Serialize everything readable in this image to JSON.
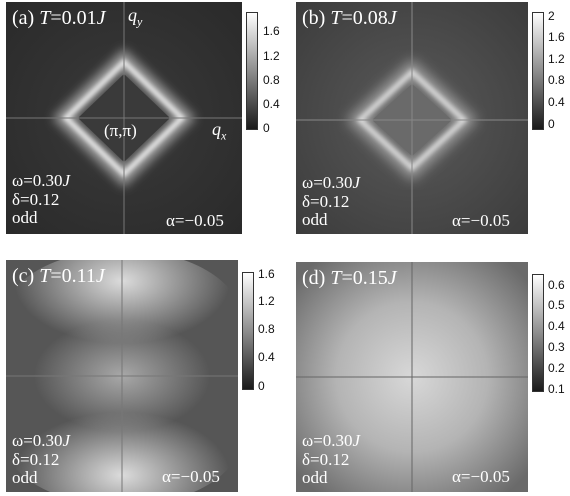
{
  "panels": [
    {
      "id": "a",
      "title_prefix": "(a) ",
      "title_var": "T",
      "title_value": "=0.01",
      "title_unit": "J",
      "omega": "ω=0.30",
      "omega_unit": "J",
      "delta": "δ=0.12",
      "parity": "odd",
      "alpha": "α=−0.05",
      "qx_label": "q",
      "qx_sub": "x",
      "qy_label": "q",
      "qy_sub": "y",
      "center_label": "(π,π)",
      "colorbar_ticks": [
        "1.6",
        "1.2",
        "0.8",
        "0.4",
        "0"
      ],
      "colorbar_range": [
        0,
        1.8
      ]
    },
    {
      "id": "b",
      "title_prefix": "(b) ",
      "title_var": "T",
      "title_value": "=0.08",
      "title_unit": "J",
      "omega": "ω=0.30",
      "omega_unit": "J",
      "delta": "δ=0.12",
      "parity": "odd",
      "alpha": "α=−0.05",
      "colorbar_ticks": [
        "2",
        "1.6",
        "1.2",
        "0.8",
        "0.4",
        "0"
      ],
      "colorbar_range": [
        0,
        2.0
      ]
    },
    {
      "id": "c",
      "title_prefix": "(c) ",
      "title_var": "T",
      "title_value": "=0.11",
      "title_unit": "J",
      "omega": "ω=0.30",
      "omega_unit": "J",
      "delta": "δ=0.12",
      "parity": "odd",
      "alpha": "α=−0.05",
      "colorbar_ticks": [
        "1.6",
        "1.2",
        "0.8",
        "0.4",
        "0"
      ],
      "colorbar_range": [
        0,
        1.7
      ]
    },
    {
      "id": "d",
      "title_prefix": "(d) ",
      "title_var": "T",
      "title_value": "=0.15",
      "title_unit": "J",
      "omega": "ω=0.30",
      "omega_unit": "J",
      "delta": "δ=0.12",
      "parity": "odd",
      "alpha": "α=−0.05",
      "colorbar_ticks": [
        "0.6",
        "0.5",
        "0.4",
        "0.3",
        "0.2",
        "0.1"
      ],
      "colorbar_range": [
        0.1,
        0.65
      ]
    }
  ]
}
